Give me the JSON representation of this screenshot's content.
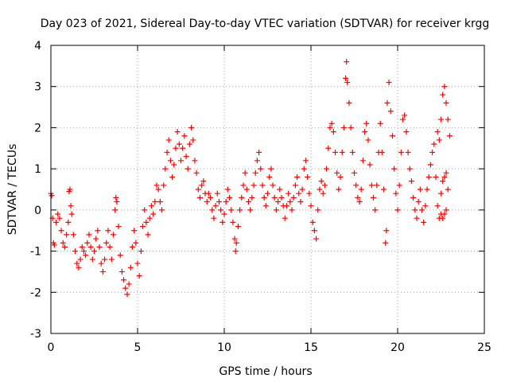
{
  "chart_data": {
    "type": "scatter",
    "title": "Day 023 of 2021, Sidereal Day-to-day VTEC variation (SDTVAR) for receiver krgg",
    "xlabel": "GPS time / hours",
    "ylabel": "SDTVAR / TECUs",
    "xlim": [
      0,
      25
    ],
    "ylim": [
      -3,
      4
    ],
    "xticks": [
      "0",
      "5",
      "10",
      "15",
      "20",
      "25"
    ],
    "yticks": [
      "-3",
      "-2",
      "-1",
      "0",
      "1",
      "2",
      "3",
      "4"
    ],
    "grid": true,
    "marker": "+",
    "series_color": "#ff0000",
    "series": [
      {
        "name": "SDTVAR",
        "points": [
          [
            0.0,
            0.4
          ],
          [
            0.05,
            0.35
          ],
          [
            0.1,
            -0.2
          ],
          [
            0.15,
            -0.8
          ],
          [
            0.2,
            -0.85
          ],
          [
            0.3,
            -0.3
          ],
          [
            0.4,
            -0.1
          ],
          [
            0.5,
            -0.2
          ],
          [
            0.6,
            -0.5
          ],
          [
            0.7,
            -0.8
          ],
          [
            0.8,
            -0.9
          ],
          [
            0.9,
            -0.6
          ],
          [
            1.0,
            -0.3
          ],
          [
            1.05,
            0.45
          ],
          [
            1.1,
            0.5
          ],
          [
            1.15,
            0.1
          ],
          [
            1.2,
            -0.1
          ],
          [
            1.3,
            -0.6
          ],
          [
            1.4,
            -1.0
          ],
          [
            1.5,
            -1.3
          ],
          [
            1.6,
            -1.4
          ],
          [
            1.7,
            -1.2
          ],
          [
            1.8,
            -0.9
          ],
          [
            1.9,
            -1.0
          ],
          [
            2.0,
            -1.1
          ],
          [
            2.1,
            -0.8
          ],
          [
            2.2,
            -0.6
          ],
          [
            2.3,
            -0.9
          ],
          [
            2.4,
            -1.2
          ],
          [
            2.5,
            -1.0
          ],
          [
            2.6,
            -0.7
          ],
          [
            2.7,
            -0.5
          ],
          [
            2.8,
            -0.9
          ],
          [
            2.9,
            -1.3
          ],
          [
            3.0,
            -1.5
          ],
          [
            3.1,
            -1.2
          ],
          [
            3.2,
            -0.8
          ],
          [
            3.3,
            -0.5
          ],
          [
            3.4,
            -0.9
          ],
          [
            3.5,
            -1.2
          ],
          [
            3.6,
            -0.6
          ],
          [
            3.7,
            0.0
          ],
          [
            3.75,
            0.3
          ],
          [
            3.8,
            0.2
          ],
          [
            3.9,
            -0.4
          ],
          [
            4.0,
            -1.1
          ],
          [
            4.1,
            -1.5
          ],
          [
            4.2,
            -1.7
          ],
          [
            4.3,
            -1.9
          ],
          [
            4.4,
            -2.05
          ],
          [
            4.5,
            -1.8
          ],
          [
            4.6,
            -1.4
          ],
          [
            4.7,
            -0.9
          ],
          [
            4.8,
            -0.5
          ],
          [
            4.9,
            -0.8
          ],
          [
            5.0,
            -1.3
          ],
          [
            5.1,
            -1.6
          ],
          [
            5.2,
            -1.0
          ],
          [
            5.3,
            -0.4
          ],
          [
            5.4,
            0.0
          ],
          [
            5.5,
            -0.3
          ],
          [
            5.6,
            -0.6
          ],
          [
            5.7,
            -0.2
          ],
          [
            5.8,
            0.1
          ],
          [
            5.9,
            -0.1
          ],
          [
            6.0,
            0.2
          ],
          [
            6.1,
            0.6
          ],
          [
            6.2,
            0.5
          ],
          [
            6.3,
            0.2
          ],
          [
            6.4,
            0.0
          ],
          [
            6.5,
            0.6
          ],
          [
            6.6,
            1.0
          ],
          [
            6.7,
            1.4
          ],
          [
            6.8,
            1.7
          ],
          [
            6.9,
            1.2
          ],
          [
            7.0,
            0.8
          ],
          [
            7.1,
            1.1
          ],
          [
            7.2,
            1.5
          ],
          [
            7.3,
            1.9
          ],
          [
            7.4,
            1.6
          ],
          [
            7.5,
            1.2
          ],
          [
            7.6,
            1.5
          ],
          [
            7.7,
            1.8
          ],
          [
            7.8,
            1.3
          ],
          [
            7.9,
            1.0
          ],
          [
            8.0,
            1.6
          ],
          [
            8.1,
            2.0
          ],
          [
            8.2,
            1.7
          ],
          [
            8.3,
            1.2
          ],
          [
            8.4,
            0.9
          ],
          [
            8.5,
            0.5
          ],
          [
            8.6,
            0.3
          ],
          [
            8.7,
            0.6
          ],
          [
            8.8,
            0.7
          ],
          [
            8.9,
            0.4
          ],
          [
            9.0,
            0.2
          ],
          [
            9.1,
            0.4
          ],
          [
            9.2,
            0.3
          ],
          [
            9.3,
            0.0
          ],
          [
            9.4,
            -0.2
          ],
          [
            9.5,
            0.1
          ],
          [
            9.6,
            0.4
          ],
          [
            9.7,
            0.2
          ],
          [
            9.8,
            0.0
          ],
          [
            9.9,
            -0.3
          ],
          [
            10.0,
            -0.1
          ],
          [
            10.1,
            0.2
          ],
          [
            10.2,
            0.5
          ],
          [
            10.3,
            0.3
          ],
          [
            10.4,
            0.0
          ],
          [
            10.5,
            -0.3
          ],
          [
            10.6,
            -0.7
          ],
          [
            10.65,
            -1.0
          ],
          [
            10.7,
            -0.8
          ],
          [
            10.8,
            -0.4
          ],
          [
            10.9,
            0.0
          ],
          [
            11.0,
            0.3
          ],
          [
            11.1,
            0.6
          ],
          [
            11.2,
            0.9
          ],
          [
            11.3,
            0.5
          ],
          [
            11.4,
            0.2
          ],
          [
            11.5,
            0.0
          ],
          [
            11.6,
            0.3
          ],
          [
            11.7,
            0.6
          ],
          [
            11.8,
            0.9
          ],
          [
            11.9,
            1.2
          ],
          [
            12.0,
            1.4
          ],
          [
            12.1,
            1.0
          ],
          [
            12.2,
            0.6
          ],
          [
            12.3,
            0.3
          ],
          [
            12.4,
            0.1
          ],
          [
            12.5,
            0.4
          ],
          [
            12.6,
            0.8
          ],
          [
            12.7,
            1.0
          ],
          [
            12.8,
            0.6
          ],
          [
            12.9,
            0.3
          ],
          [
            13.0,
            0.0
          ],
          [
            13.1,
            0.2
          ],
          [
            13.2,
            0.5
          ],
          [
            13.3,
            0.3
          ],
          [
            13.4,
            0.1
          ],
          [
            13.5,
            -0.2
          ],
          [
            13.6,
            0.1
          ],
          [
            13.7,
            0.4
          ],
          [
            13.8,
            0.2
          ],
          [
            13.9,
            0.0
          ],
          [
            14.0,
            0.3
          ],
          [
            14.1,
            0.6
          ],
          [
            14.2,
            0.8
          ],
          [
            14.3,
            0.4
          ],
          [
            14.4,
            0.2
          ],
          [
            14.5,
            0.5
          ],
          [
            14.6,
            1.0
          ],
          [
            14.7,
            1.2
          ],
          [
            14.8,
            0.8
          ],
          [
            14.9,
            0.4
          ],
          [
            15.0,
            0.1
          ],
          [
            15.1,
            -0.3
          ],
          [
            15.2,
            -0.5
          ],
          [
            15.3,
            -0.7
          ],
          [
            15.4,
            0.0
          ],
          [
            15.5,
            0.5
          ],
          [
            15.6,
            0.7
          ],
          [
            15.7,
            0.4
          ],
          [
            15.8,
            0.6
          ],
          [
            15.9,
            1.0
          ],
          [
            16.0,
            1.5
          ],
          [
            16.1,
            2.0
          ],
          [
            16.2,
            2.1
          ],
          [
            16.3,
            1.9
          ],
          [
            16.4,
            1.4
          ],
          [
            16.5,
            0.9
          ],
          [
            16.6,
            0.5
          ],
          [
            16.7,
            0.8
          ],
          [
            16.8,
            1.4
          ],
          [
            16.9,
            2.0
          ],
          [
            17.0,
            3.2
          ],
          [
            17.05,
            3.6
          ],
          [
            17.1,
            3.1
          ],
          [
            17.2,
            2.6
          ],
          [
            17.3,
            2.0
          ],
          [
            17.4,
            1.4
          ],
          [
            17.5,
            0.9
          ],
          [
            17.6,
            0.6
          ],
          [
            17.7,
            0.3
          ],
          [
            17.8,
            0.2
          ],
          [
            17.9,
            0.5
          ],
          [
            18.0,
            1.2
          ],
          [
            18.1,
            1.9
          ],
          [
            18.2,
            2.1
          ],
          [
            18.3,
            1.7
          ],
          [
            18.4,
            1.1
          ],
          [
            18.5,
            0.6
          ],
          [
            18.6,
            0.3
          ],
          [
            18.7,
            0.0
          ],
          [
            18.8,
            0.6
          ],
          [
            18.9,
            1.4
          ],
          [
            19.0,
            2.1
          ],
          [
            19.1,
            1.4
          ],
          [
            19.2,
            0.5
          ],
          [
            19.3,
            -0.8
          ],
          [
            19.35,
            -0.5
          ],
          [
            19.4,
            2.6
          ],
          [
            19.5,
            3.1
          ],
          [
            19.6,
            2.4
          ],
          [
            19.7,
            1.8
          ],
          [
            19.8,
            1.0
          ],
          [
            19.9,
            0.4
          ],
          [
            20.0,
            0.0
          ],
          [
            20.1,
            0.6
          ],
          [
            20.2,
            1.4
          ],
          [
            20.3,
            2.2
          ],
          [
            20.4,
            2.3
          ],
          [
            20.5,
            1.9
          ],
          [
            20.6,
            1.4
          ],
          [
            20.7,
            1.0
          ],
          [
            20.8,
            0.7
          ],
          [
            20.9,
            0.3
          ],
          [
            21.0,
            0.0
          ],
          [
            21.1,
            -0.2
          ],
          [
            21.2,
            0.2
          ],
          [
            21.3,
            0.5
          ],
          [
            21.4,
            0.0
          ],
          [
            21.5,
            -0.3
          ],
          [
            21.6,
            0.1
          ],
          [
            21.7,
            0.5
          ],
          [
            21.8,
            0.8
          ],
          [
            21.9,
            1.1
          ],
          [
            22.0,
            1.4
          ],
          [
            22.1,
            1.6
          ],
          [
            22.2,
            0.8
          ],
          [
            22.3,
            0.1
          ],
          [
            22.4,
            -0.2
          ],
          [
            22.5,
            0.4
          ],
          [
            22.6,
            0.7
          ],
          [
            22.7,
            0.8
          ],
          [
            22.8,
            0.9
          ],
          [
            22.9,
            0.5
          ],
          [
            22.3,
            1.9
          ],
          [
            22.4,
            1.7
          ],
          [
            22.5,
            2.2
          ],
          [
            22.6,
            2.8
          ],
          [
            22.7,
            3.0
          ],
          [
            22.8,
            2.6
          ],
          [
            22.9,
            2.2
          ],
          [
            23.0,
            1.8
          ],
          [
            22.5,
            -0.1
          ],
          [
            22.6,
            -0.2
          ],
          [
            22.7,
            -0.1
          ],
          [
            22.8,
            0.0
          ]
        ]
      }
    ]
  }
}
